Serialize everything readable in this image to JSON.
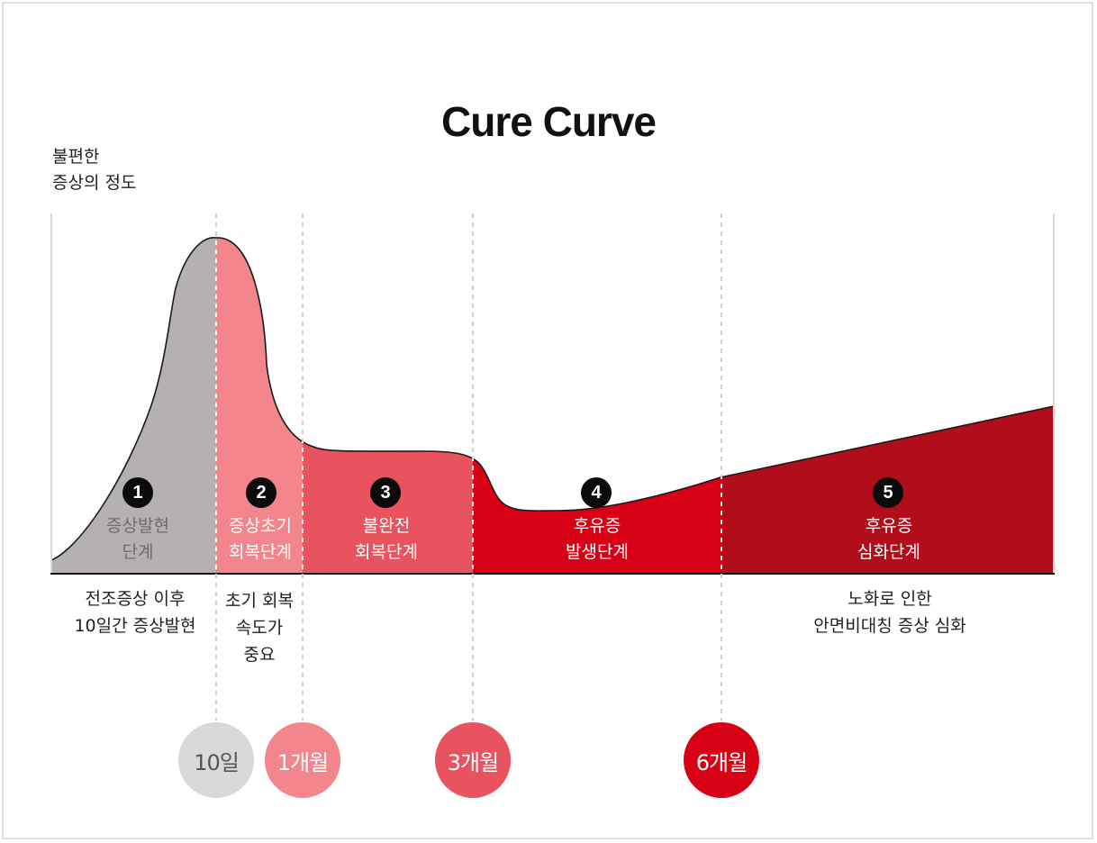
{
  "title": "Cure Curve",
  "y_axis_label": [
    "불편한",
    "증상의 정도"
  ],
  "stages": [
    {
      "number": "1",
      "label": [
        "증상발현",
        "단계"
      ],
      "fill": "#b5b1b2",
      "text_color": "#6f6b6c",
      "desc": [
        "전조증상 이후",
        "10일간 증상발현"
      ]
    },
    {
      "number": "2",
      "label": [
        "증상초기",
        "회복단계"
      ],
      "fill": "#f2868c",
      "text_color": "#ffffff",
      "desc": [
        "초기 회복",
        "속도가",
        "중요"
      ]
    },
    {
      "number": "3",
      "label": [
        "불완전",
        "회복단계"
      ],
      "fill": "#e8535f",
      "text_color": "#ffffff",
      "desc": []
    },
    {
      "number": "4",
      "label": [
        "후유증",
        "발생단계"
      ],
      "fill": "#d80014",
      "text_color": "#ffffff",
      "desc": []
    },
    {
      "number": "5",
      "label": [
        "후유증",
        "심화단계"
      ],
      "fill": "#b20d1b",
      "text_color": "#ffffff",
      "desc": [
        "노화로 인한",
        "안면비대칭 증상 심화"
      ]
    }
  ],
  "timeline": [
    {
      "label": "10일",
      "color": "#d9d9d9",
      "text_color": "#555555"
    },
    {
      "label": "1개월",
      "color": "#f2868c",
      "text_color": "#ffffff"
    },
    {
      "label": "3개월",
      "color": "#e8535f",
      "text_color": "#ffffff"
    },
    {
      "label": "6개월",
      "color": "#d80014",
      "text_color": "#ffffff"
    }
  ]
}
